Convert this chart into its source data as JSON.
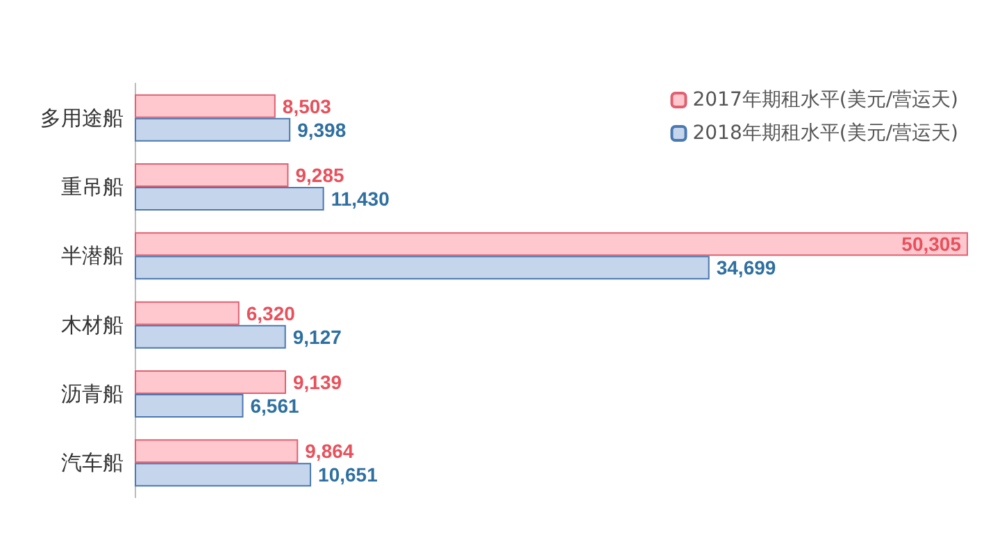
{
  "chart_data": {
    "type": "bar",
    "orientation": "horizontal",
    "categories": [
      "多用途船",
      "重吊船",
      "半潜船",
      "木材船",
      "沥青船",
      "汽车船"
    ],
    "series": [
      {
        "name": "2017年期租水平(美元/营运天)",
        "color": "#ffc7ce",
        "values": [
          8503,
          9285,
          50305,
          6320,
          9139,
          9864
        ],
        "value_labels": [
          "8,503",
          "9,285",
          "50,305",
          "6,320",
          "9,139",
          "9,864"
        ]
      },
      {
        "name": "2018年期租水平(美元/营运天)",
        "color": "#c5d5ec",
        "values": [
          9398,
          11430,
          34699,
          9127,
          6561,
          10651
        ],
        "value_labels": [
          "9,398",
          "11,430",
          "34,699",
          "9,127",
          "6,561",
          "10,651"
        ]
      }
    ],
    "legend": "top right"
  }
}
